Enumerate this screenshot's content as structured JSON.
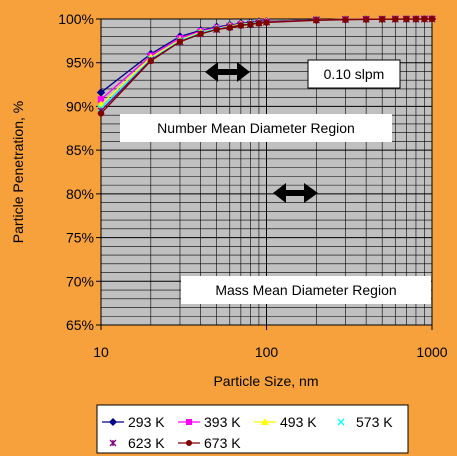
{
  "chart_data": {
    "type": "line",
    "xlabel": "Particle Size, nm",
    "ylabel": "Particle Penetration, %",
    "x_scale": "log",
    "xlim": [
      10,
      1000
    ],
    "ylim": [
      65,
      100
    ],
    "x_ticks": [
      "10",
      "100",
      "1000"
    ],
    "y_ticks": [
      "65%",
      "70%",
      "75%",
      "80%",
      "85%",
      "90%",
      "95%",
      "100%"
    ],
    "grid": true,
    "plot_background": "#C0C0C0",
    "legend_position": "bottom",
    "annotations": {
      "flow": "0.10 slpm",
      "number_region": "Number Mean Diameter Region",
      "mass_region": "Mass Mean Diameter Region"
    },
    "x": [
      10,
      20,
      30,
      40,
      50,
      60,
      70,
      80,
      90,
      100,
      200,
      300,
      400,
      500,
      600,
      700,
      800,
      900,
      1000
    ],
    "series": [
      {
        "name": "293 K",
        "color": "#00008B",
        "marker": "diamond",
        "values": [
          91.6,
          96.0,
          98.0,
          98.7,
          99.1,
          99.3,
          99.5,
          99.6,
          99.7,
          99.75,
          99.9,
          99.95,
          99.97,
          99.98,
          99.99,
          99.99,
          99.99,
          100,
          100
        ]
      },
      {
        "name": "393 K",
        "color": "#FF00FF",
        "marker": "square",
        "values": [
          90.8,
          95.8,
          97.8,
          98.6,
          99.0,
          99.2,
          99.4,
          99.5,
          99.6,
          99.7,
          99.9,
          99.95,
          99.97,
          99.98,
          99.99,
          99.99,
          99.99,
          100,
          100
        ]
      },
      {
        "name": "493 K",
        "color": "#FFFF00",
        "marker": "triangle",
        "values": [
          90.2,
          95.6,
          97.6,
          98.5,
          98.9,
          99.2,
          99.4,
          99.5,
          99.6,
          99.7,
          99.9,
          99.95,
          99.97,
          99.98,
          99.99,
          99.99,
          99.99,
          100,
          100
        ]
      },
      {
        "name": "573 K",
        "color": "#00FFFF",
        "marker": "x",
        "values": [
          89.8,
          95.4,
          97.5,
          98.4,
          98.9,
          99.1,
          99.3,
          99.5,
          99.6,
          99.65,
          99.9,
          99.95,
          99.97,
          99.98,
          99.99,
          99.99,
          99.99,
          100,
          100
        ]
      },
      {
        "name": "623 K",
        "color": "#800080",
        "marker": "star",
        "values": [
          89.5,
          95.3,
          97.4,
          98.3,
          98.8,
          99.1,
          99.3,
          99.4,
          99.55,
          99.65,
          99.9,
          99.95,
          99.97,
          99.98,
          99.99,
          99.99,
          99.99,
          100,
          100
        ]
      },
      {
        "name": "673 K",
        "color": "#800000",
        "marker": "circle",
        "values": [
          89.2,
          95.2,
          97.4,
          98.3,
          98.8,
          99.0,
          99.25,
          99.4,
          99.5,
          99.6,
          99.85,
          99.92,
          99.95,
          99.97,
          99.98,
          99.99,
          99.99,
          100,
          100
        ]
      }
    ]
  }
}
